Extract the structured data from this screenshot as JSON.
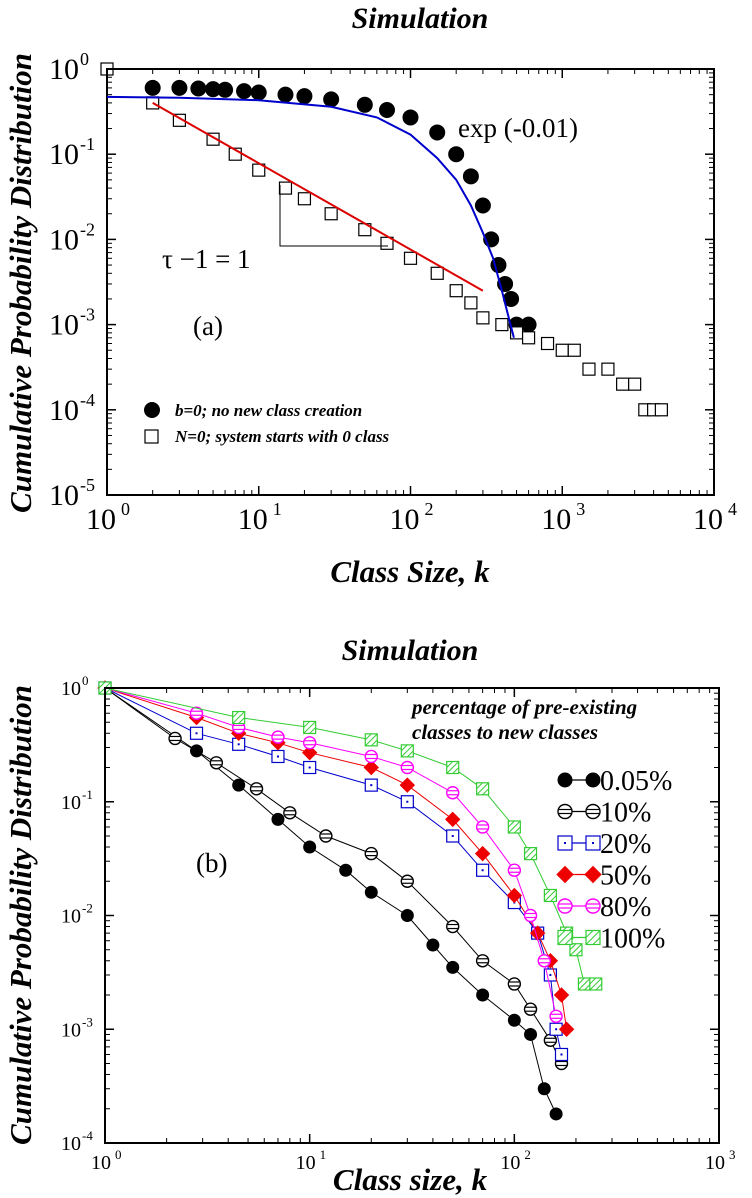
{
  "chart_data": [
    {
      "type": "scatter",
      "title": "Simulation",
      "xlabel": "Class Size, k",
      "ylabel": "Cumulative Probability Distribution",
      "xscale": "log",
      "yscale": "log",
      "xlim": [
        1,
        10000
      ],
      "ylim": [
        1e-05,
        1
      ],
      "xticks": [
        {
          "base": "10",
          "exp": "0"
        },
        {
          "base": "10",
          "exp": "1"
        },
        {
          "base": "10",
          "exp": "2"
        },
        {
          "base": "10",
          "exp": "3"
        },
        {
          "base": "10",
          "exp": "4"
        }
      ],
      "yticks": [
        {
          "base": "10",
          "exp": "0"
        },
        {
          "base": "10",
          "exp": "-1"
        },
        {
          "base": "10",
          "exp": "-2"
        },
        {
          "base": "10",
          "exp": "-3"
        },
        {
          "base": "10",
          "exp": "-4"
        },
        {
          "base": "10",
          "exp": "-5"
        }
      ],
      "panel_label": "(a)",
      "legend_position": "bottom-left",
      "annotations": {
        "exp_fit": "exp (-0.01)",
        "slope": "τ −1 = 1"
      },
      "series": [
        {
          "name": "b=0; no new class creation",
          "marker": "filled-circle",
          "color": "#000000",
          "x": [
            2,
            3,
            4,
            5,
            6,
            8,
            10,
            15,
            20,
            30,
            50,
            70,
            100,
            150,
            200,
            250,
            300,
            340,
            380,
            420,
            460,
            500,
            600
          ],
          "y": [
            0.6,
            0.6,
            0.59,
            0.58,
            0.57,
            0.55,
            0.53,
            0.5,
            0.48,
            0.44,
            0.38,
            0.33,
            0.27,
            0.18,
            0.1,
            0.055,
            0.025,
            0.01,
            0.005,
            0.003,
            0.002,
            0.001,
            0.001
          ]
        },
        {
          "name": "N=0; system starts with 0 class",
          "marker": "open-square",
          "color": "#000000",
          "x": [
            1,
            2,
            3,
            5,
            7,
            10,
            15,
            20,
            30,
            50,
            70,
            100,
            150,
            200,
            250,
            300,
            400,
            500,
            600,
            800,
            1000,
            1200,
            1500,
            2000,
            2500,
            3000,
            3500,
            4000,
            4500
          ],
          "y": [
            1,
            0.4,
            0.25,
            0.15,
            0.1,
            0.065,
            0.04,
            0.03,
            0.02,
            0.013,
            0.009,
            0.006,
            0.004,
            0.0025,
            0.0018,
            0.0012,
            0.001,
            0.0008,
            0.0007,
            0.0006,
            0.0005,
            0.0005,
            0.0003,
            0.0003,
            0.0002,
            0.0002,
            0.0001,
            0.0001,
            0.0001
          ]
        },
        {
          "name": "",
          "kind": "fit-line",
          "color": "#0000cc",
          "x": [
            1,
            3,
            10,
            30,
            60,
            100,
            150,
            200,
            250,
            300,
            350,
            400,
            450,
            480
          ],
          "y": [
            0.47,
            0.46,
            0.43,
            0.36,
            0.27,
            0.17,
            0.09,
            0.05,
            0.025,
            0.012,
            0.006,
            0.0025,
            0.0011,
            0.0007
          ]
        },
        {
          "name": "",
          "kind": "fit-line",
          "color": "#dd0000",
          "x": [
            2,
            300
          ],
          "y": [
            0.4,
            0.0025
          ]
        }
      ]
    },
    {
      "type": "line",
      "title": "Simulation",
      "xlabel": "Class size, k",
      "ylabel": "Cumulative Probability Distribution",
      "xscale": "log",
      "yscale": "log",
      "xlim": [
        1,
        1000
      ],
      "ylim": [
        0.0001,
        1
      ],
      "xticks": [
        {
          "base": "10",
          "exp": "0"
        },
        {
          "base": "10",
          "exp": "1"
        },
        {
          "base": "10",
          "exp": "2"
        },
        {
          "base": "10",
          "exp": "3"
        }
      ],
      "yticks": [
        {
          "base": "10",
          "exp": "0"
        },
        {
          "base": "10",
          "exp": "-1"
        },
        {
          "base": "10",
          "exp": "-2"
        },
        {
          "base": "10",
          "exp": "-3"
        },
        {
          "base": "10",
          "exp": "-4"
        }
      ],
      "panel_label": "(b)",
      "legend_title": [
        "percentage of pre-existing",
        "classes to new classes"
      ],
      "legend_position": "right",
      "series": [
        {
          "name": "0.05%",
          "marker": "filled-circle",
          "color": "#000000",
          "x": [
            1,
            2.8,
            4.5,
            7,
            10,
            15,
            20,
            30,
            40,
            50,
            70,
            100,
            120,
            140,
            160
          ],
          "y": [
            1,
            0.28,
            0.14,
            0.07,
            0.04,
            0.025,
            0.016,
            0.01,
            0.0055,
            0.0035,
            0.002,
            0.0012,
            0.0009,
            0.0003,
            0.00018
          ]
        },
        {
          "name": "10%",
          "marker": "hatched-circle",
          "color": "#000000",
          "x": [
            1,
            2.2,
            3.5,
            5.5,
            8,
            12,
            20,
            30,
            50,
            70,
            100,
            120,
            150,
            170
          ],
          "y": [
            1,
            0.36,
            0.22,
            0.13,
            0.08,
            0.05,
            0.035,
            0.02,
            0.008,
            0.004,
            0.0025,
            0.0015,
            0.0008,
            0.0005
          ]
        },
        {
          "name": "20%",
          "marker": "open-square-dotted",
          "color": "#0000cc",
          "x": [
            1,
            2.8,
            4.5,
            7,
            10,
            20,
            30,
            50,
            70,
            100,
            130,
            150,
            160,
            170
          ],
          "y": [
            1,
            0.4,
            0.32,
            0.25,
            0.2,
            0.14,
            0.1,
            0.05,
            0.025,
            0.013,
            0.007,
            0.003,
            0.001,
            0.0006
          ]
        },
        {
          "name": "50%",
          "marker": "filled-diamond",
          "color": "#ee0000",
          "x": [
            1,
            2.8,
            4.5,
            7,
            10,
            20,
            30,
            50,
            70,
            100,
            130,
            150,
            170,
            180
          ],
          "y": [
            1,
            0.55,
            0.4,
            0.33,
            0.27,
            0.2,
            0.14,
            0.07,
            0.035,
            0.015,
            0.007,
            0.004,
            0.002,
            0.001
          ]
        },
        {
          "name": "80%",
          "marker": "hatched-circle",
          "color": "#ff00ff",
          "x": [
            1,
            2.8,
            4.5,
            7,
            10,
            20,
            30,
            50,
            70,
            100,
            120,
            140,
            160
          ],
          "y": [
            1,
            0.6,
            0.45,
            0.37,
            0.33,
            0.25,
            0.2,
            0.12,
            0.06,
            0.025,
            0.01,
            0.004,
            0.0013
          ]
        },
        {
          "name": "100%",
          "marker": "hatched-square",
          "color": "#33cc33",
          "x": [
            1,
            4.5,
            10,
            20,
            30,
            50,
            70,
            100,
            120,
            150,
            180,
            200,
            220,
            250
          ],
          "y": [
            1,
            0.55,
            0.45,
            0.35,
            0.28,
            0.2,
            0.13,
            0.06,
            0.035,
            0.015,
            0.007,
            0.005,
            0.0025,
            0.0025
          ]
        }
      ]
    }
  ]
}
